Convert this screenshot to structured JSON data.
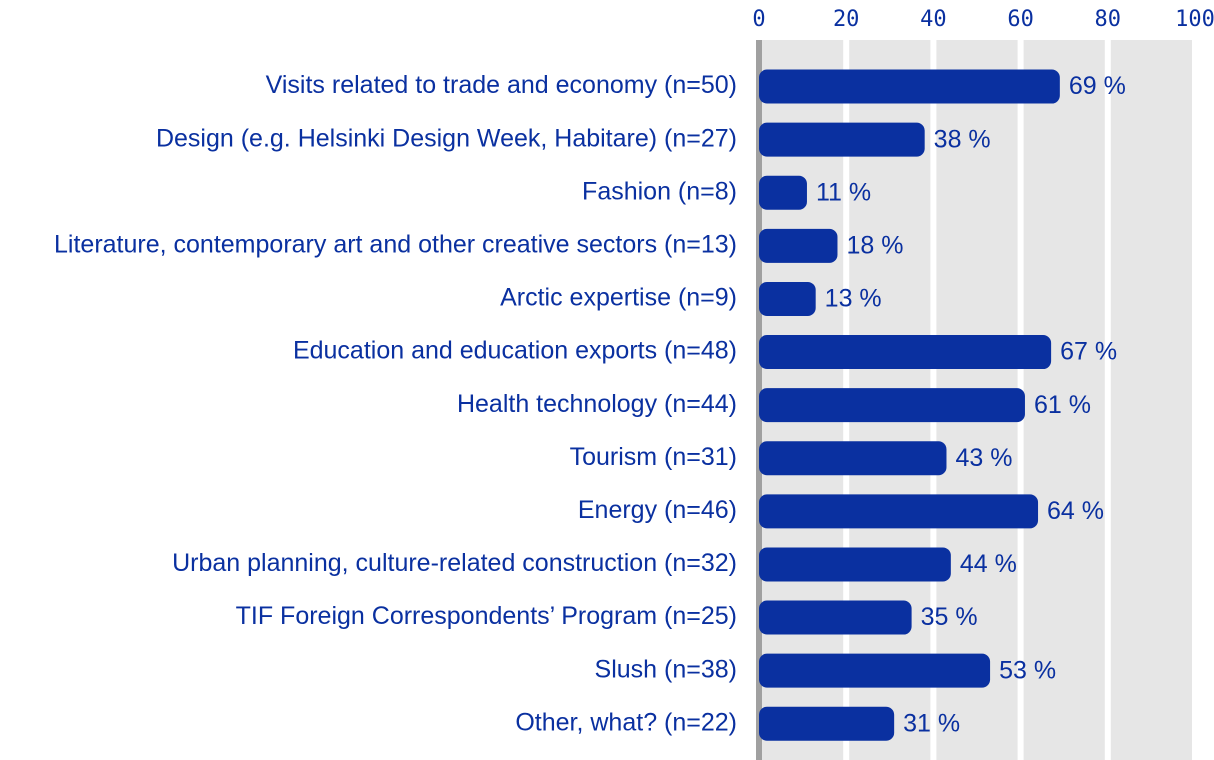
{
  "chart_data": {
    "type": "bar",
    "orientation": "horizontal",
    "categories": [
      "Visits related to trade and economy (n=50)",
      "Design (e.g. Helsinki Design Week, Habitare) (n=27)",
      "Fashion (n=8)",
      "Literature, contemporary art and other creative sectors (n=13)",
      "Arctic expertise (n=9)",
      "Education and education exports (n=48)",
      "Health technology (n=44)",
      "Tourism (n=31)",
      "Energy (n=46)",
      "Urban planning, culture-related construction (n=32)",
      "TIF Foreign Correspondents’ Program (n=25)",
      "Slush (n=38)",
      "Other, what? (n=22)"
    ],
    "values": [
      69,
      38,
      11,
      18,
      13,
      67,
      61,
      43,
      64,
      44,
      35,
      53,
      31
    ],
    "value_labels": [
      "69 %",
      "38 %",
      "11 %",
      "18 %",
      "13 %",
      "67 %",
      "61 %",
      "43 %",
      "64 %",
      "44 %",
      "35 %",
      "53 %",
      "31 %"
    ],
    "color": "#0a30a0",
    "xlim": [
      0,
      100
    ],
    "xticks": [
      0,
      20,
      40,
      60,
      80,
      100
    ],
    "grid": true
  }
}
